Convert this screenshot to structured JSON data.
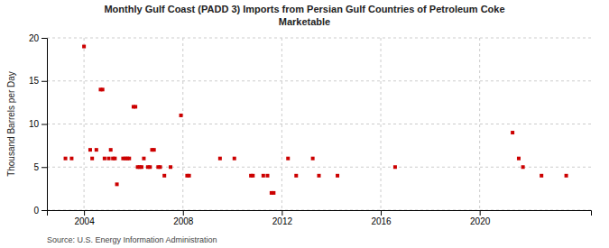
{
  "chart_data": {
    "type": "scatter",
    "title": "Monthly Gulf Coast (PADD 3) Imports from Persian Gulf Countries of Petroleum Coke\nMarketable",
    "ylabel": "Thousand Barrels per Day",
    "annotation": "Source: U.S. Energy Information Administration",
    "color": "#cc0000",
    "marker": "square",
    "grid": true,
    "xlim": [
      2002.5,
      2024.5
    ],
    "ylim": [
      0,
      20
    ],
    "xticks": [
      2004,
      2008,
      2012,
      2016,
      2020
    ],
    "yticks": [
      0,
      5,
      10,
      15,
      20
    ],
    "x": [
      2003.25,
      2003.5,
      2004.0,
      2004.25,
      2004.33,
      2004.5,
      2004.67,
      2004.75,
      2004.83,
      2005.0,
      2005.08,
      2005.17,
      2005.25,
      2005.33,
      2005.58,
      2005.67,
      2005.75,
      2005.83,
      2006.0,
      2006.08,
      2006.17,
      2006.25,
      2006.33,
      2006.42,
      2006.58,
      2006.67,
      2006.75,
      2006.83,
      2007.0,
      2007.08,
      2007.25,
      2007.5,
      2007.92,
      2008.17,
      2008.25,
      2009.5,
      2010.08,
      2010.75,
      2010.83,
      2011.25,
      2011.42,
      2011.58,
      2011.67,
      2012.25,
      2012.58,
      2013.25,
      2013.5,
      2014.25,
      2016.58,
      2021.33,
      2021.58,
      2021.75,
      2022.5,
      2023.5
    ],
    "values": [
      6,
      6,
      19,
      7,
      6,
      7,
      14,
      14,
      6,
      6,
      7,
      6,
      6,
      3,
      6,
      6,
      6,
      6,
      12,
      12,
      5,
      5,
      5,
      6,
      5,
      5,
      7,
      7,
      5,
      5,
      4,
      5,
      11,
      4,
      4,
      6,
      6,
      4,
      4,
      4,
      4,
      2,
      2,
      6,
      4,
      6,
      4,
      4,
      5,
      9,
      6,
      5,
      4,
      4
    ]
  }
}
